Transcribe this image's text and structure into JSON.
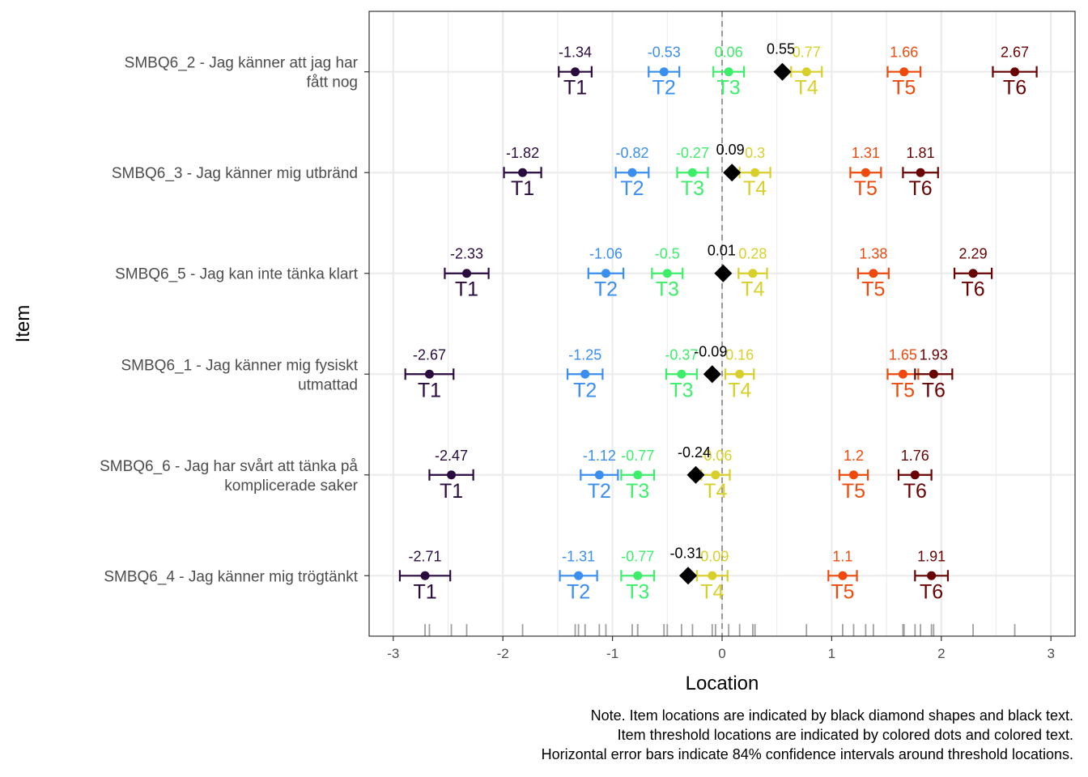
{
  "chart_data": {
    "type": "scatter",
    "xlabel": "Location",
    "ylabel": "Item",
    "xlim": [
      -3.22,
      3.22
    ],
    "x_ticks": [
      "-3",
      "-2",
      "-1",
      "0",
      "1",
      "2",
      "3"
    ],
    "x_tick_values": [
      -3,
      -2,
      -1,
      0,
      1,
      2,
      3
    ],
    "grid": true,
    "reference_line": {
      "x": 0,
      "style": "dashed",
      "color": "#999999"
    },
    "threshold_names": [
      "T1",
      "T2",
      "T3",
      "T4",
      "T5",
      "T6"
    ],
    "threshold_colors": [
      "#2a0a3f",
      "#3a8ef0",
      "#3dee6b",
      "#d9cf2a",
      "#ef4a0c",
      "#6a0202"
    ],
    "items": [
      {
        "label_lines": [
          "SMBQ6_2 - Jag känner att jag har",
          "fått nog"
        ],
        "location": 0.55,
        "location_label": "0.55",
        "thresholds": [
          -1.34,
          -0.53,
          0.06,
          0.77,
          1.66,
          2.67
        ],
        "threshold_labels": [
          "-1.34",
          "-0.53",
          "0.06",
          "0.77",
          "1.66",
          "2.67"
        ],
        "ci_halfwidth": [
          0.15,
          0.14,
          0.14,
          0.14,
          0.15,
          0.2
        ]
      },
      {
        "label_lines": [
          "SMBQ6_3 - Jag känner mig utbränd"
        ],
        "location": 0.09,
        "location_label": "0.09",
        "thresholds": [
          -1.82,
          -0.82,
          -0.27,
          0.3,
          1.31,
          1.81
        ],
        "threshold_labels": [
          "-1.82",
          "-0.82",
          "-0.27",
          "0.3",
          "1.31",
          "1.81"
        ],
        "ci_halfwidth": [
          0.17,
          0.15,
          0.14,
          0.14,
          0.14,
          0.16
        ]
      },
      {
        "label_lines": [
          "SMBQ6_5 - Jag kan inte tänka klart"
        ],
        "location": 0.01,
        "location_label": "0.01",
        "thresholds": [
          -2.33,
          -1.06,
          -0.5,
          0.28,
          1.38,
          2.29
        ],
        "threshold_labels": [
          "-2.33",
          "-1.06",
          "-0.5",
          "0.28",
          "1.38",
          "2.29"
        ],
        "ci_halfwidth": [
          0.2,
          0.16,
          0.14,
          0.13,
          0.14,
          0.17
        ]
      },
      {
        "label_lines": [
          "SMBQ6_1 - Jag känner mig fysiskt",
          "utmattad"
        ],
        "location": -0.09,
        "location_label": "-0.09",
        "thresholds": [
          -2.67,
          -1.25,
          -0.37,
          0.16,
          1.65,
          1.93
        ],
        "threshold_labels": [
          "-2.67",
          "-1.25",
          "-0.37",
          "0.16",
          "1.65",
          "1.93"
        ],
        "ci_halfwidth": [
          0.22,
          0.16,
          0.14,
          0.13,
          0.14,
          0.17
        ]
      },
      {
        "label_lines": [
          "SMBQ6_6 - Jag har svårt att tänka på",
          "komplicerade saker"
        ],
        "location": -0.24,
        "location_label": "-0.24",
        "thresholds": [
          -2.47,
          -1.12,
          -0.77,
          -0.06,
          1.2,
          1.76
        ],
        "threshold_labels": [
          "-2.47",
          "-1.12",
          "-0.77",
          "-0.06",
          "1.2",
          "1.76"
        ],
        "ci_halfwidth": [
          0.2,
          0.17,
          0.15,
          0.13,
          0.13,
          0.15
        ]
      },
      {
        "label_lines": [
          "SMBQ6_4 - Jag känner mig trögtänkt"
        ],
        "location": -0.31,
        "location_label": "-0.31",
        "thresholds": [
          -2.71,
          -1.31,
          -0.77,
          -0.09,
          1.1,
          1.91
        ],
        "threshold_labels": [
          "-2.71",
          "-1.31",
          "-0.77",
          "-0.09",
          "1.1",
          "1.91"
        ],
        "ci_halfwidth": [
          0.23,
          0.17,
          0.15,
          0.14,
          0.13,
          0.15
        ]
      }
    ],
    "rug": [
      -2.71,
      -2.67,
      -2.47,
      -2.33,
      -1.82,
      -1.34,
      -1.31,
      -1.25,
      -1.12,
      -1.06,
      -0.82,
      -0.77,
      -0.77,
      -0.53,
      -0.5,
      -0.37,
      -0.27,
      -0.09,
      -0.06,
      0.06,
      0.16,
      0.28,
      0.3,
      0.77,
      1.1,
      1.2,
      1.31,
      1.38,
      1.65,
      1.66,
      1.76,
      1.81,
      1.91,
      1.93,
      2.29,
      2.67
    ]
  },
  "note": [
    "Note. Item locations are indicated by black diamond shapes and black text.",
    "Item threshold locations are indicated by colored dots and colored text.",
    "Horizontal error bars indicate 84% confidence intervals around threshold locations."
  ]
}
